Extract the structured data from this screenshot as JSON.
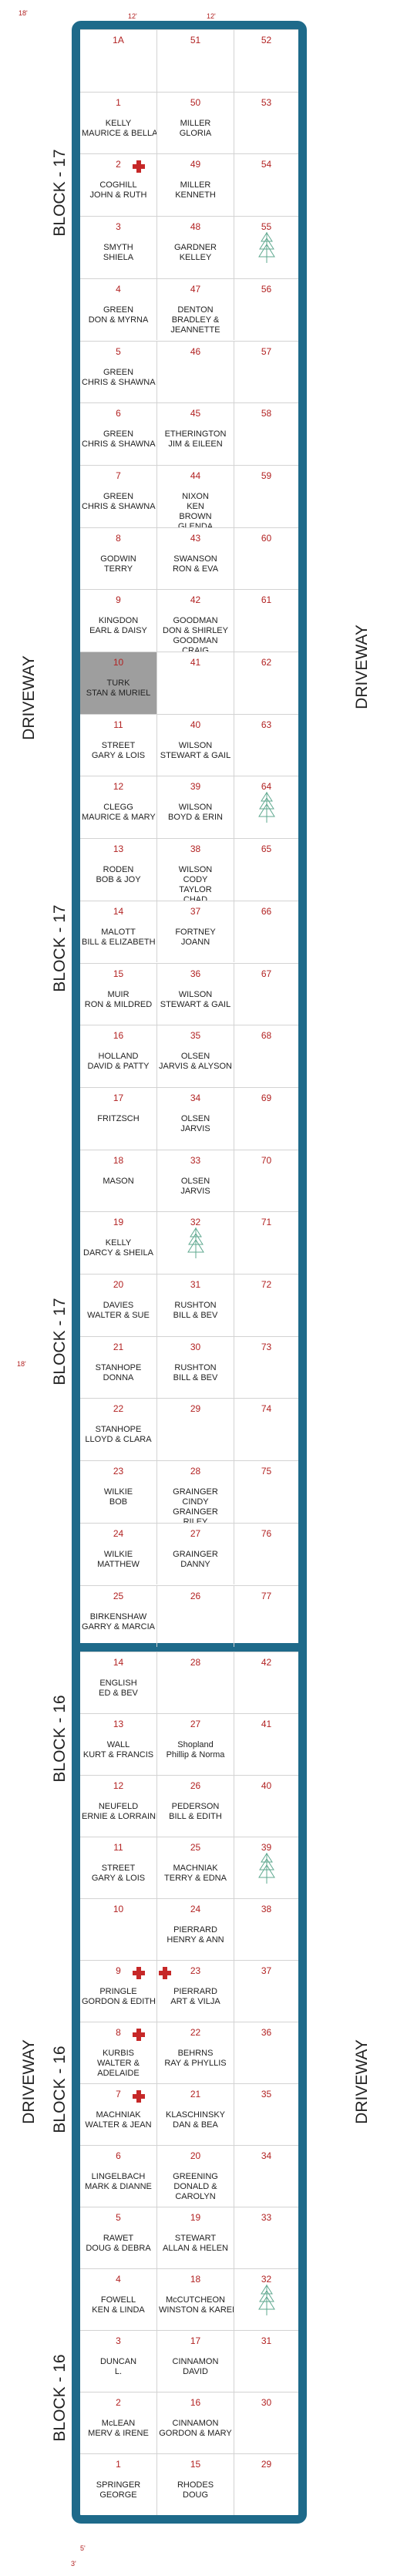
{
  "labels": {
    "block_17": "BLOCK - 17",
    "block_16": "BLOCK - 16",
    "driveway": "DRIVEWAY",
    "dim_18": "18'",
    "dim_15": "15'",
    "dim_12": "12'",
    "dim_3": "3'",
    "dim_5": "5'"
  },
  "block_17": {
    "rows": [
      {
        "plots": [
          {
            "num": "1A",
            "names": []
          },
          {
            "num": "51",
            "names": []
          },
          {
            "num": "52",
            "names": []
          }
        ]
      },
      {
        "plots": [
          {
            "num": "1",
            "names": [
              "KELLY",
              "MAURICE & BELLA"
            ]
          },
          {
            "num": "50",
            "names": [
              "MILLER",
              "GLORIA"
            ]
          },
          {
            "num": "53",
            "names": []
          }
        ]
      },
      {
        "plots": [
          {
            "num": "2",
            "names": [
              "COGHILL",
              "JOHN & RUTH"
            ],
            "cross": true
          },
          {
            "num": "49",
            "names": [
              "MILLER",
              "KENNETH"
            ]
          },
          {
            "num": "54",
            "names": []
          }
        ]
      },
      {
        "plots": [
          {
            "num": "3",
            "names": [
              "SMYTH",
              "SHIELA"
            ]
          },
          {
            "num": "48",
            "names": [
              "GARDNER",
              "KELLEY"
            ]
          },
          {
            "num": "55",
            "names": [],
            "tree": true
          }
        ]
      },
      {
        "plots": [
          {
            "num": "4",
            "names": [
              "GREEN",
              "DON & MYRNA"
            ]
          },
          {
            "num": "47",
            "names": [
              "DENTON",
              "BRADLEY &",
              "JEANNETTE"
            ]
          },
          {
            "num": "56",
            "names": []
          }
        ]
      },
      {
        "plots": [
          {
            "num": "5",
            "names": [
              "GREEN",
              "CHRIS & SHAWNA"
            ]
          },
          {
            "num": "46",
            "names": []
          },
          {
            "num": "57",
            "names": []
          }
        ]
      },
      {
        "plots": [
          {
            "num": "6",
            "names": [
              "GREEN",
              "CHRIS & SHAWNA"
            ]
          },
          {
            "num": "45",
            "names": [
              "ETHERINGTON",
              "JIM & EILEEN"
            ]
          },
          {
            "num": "58",
            "names": []
          }
        ]
      },
      {
        "plots": [
          {
            "num": "7",
            "names": [
              "GREEN",
              "CHRIS & SHAWNA"
            ]
          },
          {
            "num": "44",
            "names": [
              "NIXON",
              "KEN",
              "BROWN",
              "GLENDA"
            ]
          },
          {
            "num": "59",
            "names": []
          }
        ]
      },
      {
        "plots": [
          {
            "num": "8",
            "names": [
              "GODWIN",
              "TERRY"
            ]
          },
          {
            "num": "43",
            "names": [
              "SWANSON",
              "RON & EVA"
            ]
          },
          {
            "num": "60",
            "names": []
          }
        ]
      },
      {
        "plots": [
          {
            "num": "9",
            "names": [
              "KINGDON",
              "EARL & DAISY"
            ]
          },
          {
            "num": "42",
            "names": [
              "GOODMAN",
              "DON & SHIRLEY",
              "GOODMAN",
              "CRAIG"
            ]
          },
          {
            "num": "61",
            "names": []
          }
        ]
      },
      {
        "plots": [
          {
            "num": "10",
            "names": [
              "TURK",
              "STAN & MURIEL"
            ],
            "occupied": true
          },
          {
            "num": "41",
            "names": []
          },
          {
            "num": "62",
            "names": []
          }
        ]
      },
      {
        "plots": [
          {
            "num": "11",
            "names": [
              "STREET",
              "GARY & LOIS"
            ]
          },
          {
            "num": "40",
            "names": [
              "WILSON",
              "STEWART & GAIL"
            ]
          },
          {
            "num": "63",
            "names": []
          }
        ]
      },
      {
        "plots": [
          {
            "num": "12",
            "names": [
              "CLEGG",
              "MAURICE & MARY"
            ]
          },
          {
            "num": "39",
            "names": [
              "WILSON",
              "BOYD & ERIN"
            ]
          },
          {
            "num": "64",
            "names": [],
            "tree": true
          }
        ]
      },
      {
        "plots": [
          {
            "num": "13",
            "names": [
              "RODEN",
              "BOB & JOY"
            ]
          },
          {
            "num": "38",
            "names": [
              "WILSON",
              "CODY",
              "TAYLOR",
              "CHAD"
            ]
          },
          {
            "num": "65",
            "names": []
          }
        ]
      },
      {
        "plots": [
          {
            "num": "14",
            "names": [
              "MALOTT",
              "BILL & ELIZABETH"
            ]
          },
          {
            "num": "37",
            "names": [
              "FORTNEY",
              "JOANN"
            ]
          },
          {
            "num": "66",
            "names": []
          }
        ]
      },
      {
        "plots": [
          {
            "num": "15",
            "names": [
              "MUIR",
              "RON & MILDRED"
            ]
          },
          {
            "num": "36",
            "names": [
              "WILSON",
              "STEWART & GAIL"
            ]
          },
          {
            "num": "67",
            "names": []
          }
        ]
      },
      {
        "plots": [
          {
            "num": "16",
            "names": [
              "HOLLAND",
              "DAVID & PATTY"
            ]
          },
          {
            "num": "35",
            "names": [
              "OLSEN",
              "JARVIS & ALYSON"
            ]
          },
          {
            "num": "68",
            "names": []
          }
        ]
      },
      {
        "plots": [
          {
            "num": "17",
            "names": [
              "FRITZSCH"
            ]
          },
          {
            "num": "34",
            "names": [
              "OLSEN",
              "JARVIS"
            ]
          },
          {
            "num": "69",
            "names": []
          }
        ]
      },
      {
        "plots": [
          {
            "num": "18",
            "names": [
              "MASON"
            ]
          },
          {
            "num": "33",
            "names": [
              "OLSEN",
              "JARVIS"
            ]
          },
          {
            "num": "70",
            "names": []
          }
        ]
      },
      {
        "plots": [
          {
            "num": "19",
            "names": [
              "KELLY",
              "DARCY & SHEILA"
            ]
          },
          {
            "num": "32",
            "names": [],
            "tree": true
          },
          {
            "num": "71",
            "names": []
          }
        ]
      },
      {
        "plots": [
          {
            "num": "20",
            "names": [
              "DAVIES",
              "WALTER & SUE"
            ]
          },
          {
            "num": "31",
            "names": [
              "RUSHTON",
              "BILL & BEV"
            ]
          },
          {
            "num": "72",
            "names": []
          }
        ]
      },
      {
        "plots": [
          {
            "num": "21",
            "names": [
              "STANHOPE",
              "DONNA"
            ]
          },
          {
            "num": "30",
            "names": [
              "RUSHTON",
              "BILL & BEV"
            ]
          },
          {
            "num": "73",
            "names": []
          }
        ]
      },
      {
        "plots": [
          {
            "num": "22",
            "names": [
              "STANHOPE",
              "LLOYD & CLARA"
            ]
          },
          {
            "num": "29",
            "names": []
          },
          {
            "num": "74",
            "names": []
          }
        ]
      },
      {
        "plots": [
          {
            "num": "23",
            "names": [
              "WILKIE",
              "BOB"
            ]
          },
          {
            "num": "28",
            "names": [
              "GRAINGER",
              "CINDY",
              "GRAINGER",
              "RILEY"
            ]
          },
          {
            "num": "75",
            "names": []
          }
        ]
      },
      {
        "plots": [
          {
            "num": "24",
            "names": [
              "WILKIE",
              "MATTHEW"
            ]
          },
          {
            "num": "27",
            "names": [
              "GRAINGER",
              "DANNY"
            ]
          },
          {
            "num": "76",
            "names": []
          }
        ]
      },
      {
        "plots": [
          {
            "num": "25",
            "names": [
              "BIRKENSHAW",
              "GARRY & MARCIA"
            ]
          },
          {
            "num": "26",
            "names": []
          },
          {
            "num": "77",
            "names": []
          }
        ]
      }
    ]
  },
  "block_16": {
    "rows": [
      {
        "plots": [
          {
            "num": "14",
            "names": [
              "ENGLISH",
              "ED & BEV"
            ]
          },
          {
            "num": "28",
            "names": []
          },
          {
            "num": "42",
            "names": []
          }
        ]
      },
      {
        "plots": [
          {
            "num": "13",
            "names": [
              "WALL",
              "KURT & FRANCIS"
            ]
          },
          {
            "num": "27",
            "names": [
              "Shopland",
              "Phillip & Norma"
            ]
          },
          {
            "num": "41",
            "names": []
          }
        ]
      },
      {
        "plots": [
          {
            "num": "12",
            "names": [
              "NEUFELD",
              "ERNIE & LORRAINE"
            ]
          },
          {
            "num": "26",
            "names": [
              "PEDERSON",
              "BILL & EDITH"
            ]
          },
          {
            "num": "40",
            "names": []
          }
        ]
      },
      {
        "plots": [
          {
            "num": "11",
            "names": [
              "STREET",
              "GARY & LOIS"
            ]
          },
          {
            "num": "25",
            "names": [
              "MACHNIAK",
              "TERRY & EDNA"
            ]
          },
          {
            "num": "39",
            "names": [],
            "tree": true
          }
        ]
      },
      {
        "plots": [
          {
            "num": "10",
            "names": []
          },
          {
            "num": "24",
            "names": [
              "PIERRARD",
              "HENRY & ANN"
            ]
          },
          {
            "num": "38",
            "names": []
          }
        ]
      },
      {
        "plots": [
          {
            "num": "9",
            "names": [
              "PRINGLE",
              "GORDON & EDITH"
            ],
            "cross": true
          },
          {
            "num": "23",
            "names": [
              "PIERRARD",
              "ART & VILJA"
            ],
            "cross": true
          },
          {
            "num": "37",
            "names": []
          }
        ]
      },
      {
        "plots": [
          {
            "num": "8",
            "names": [
              "KURBIS",
              "WALTER &",
              "ADELAIDE"
            ],
            "cross": true
          },
          {
            "num": "22",
            "names": [
              "BEHRNS",
              "RAY & PHYLLIS"
            ]
          },
          {
            "num": "36",
            "names": []
          }
        ]
      },
      {
        "plots": [
          {
            "num": "7",
            "names": [
              "MACHNIAK",
              "WALTER & JEAN"
            ],
            "cross": true
          },
          {
            "num": "21",
            "names": [
              "KLASCHINSKY",
              "DAN & BEA"
            ]
          },
          {
            "num": "35",
            "names": []
          }
        ]
      },
      {
        "plots": [
          {
            "num": "6",
            "names": [
              "LINGELBACH",
              "MARK & DIANNE"
            ]
          },
          {
            "num": "20",
            "names": [
              "GREENING",
              "DONALD &",
              "CAROLYN"
            ]
          },
          {
            "num": "34",
            "names": []
          }
        ]
      },
      {
        "plots": [
          {
            "num": "5",
            "names": [
              "RAWET",
              "DOUG & DEBRA"
            ]
          },
          {
            "num": "19",
            "names": [
              "STEWART",
              "ALLAN & HELEN"
            ]
          },
          {
            "num": "33",
            "names": []
          }
        ]
      },
      {
        "plots": [
          {
            "num": "4",
            "names": [
              "FOWELL",
              "KEN & LINDA"
            ]
          },
          {
            "num": "18",
            "names": [
              "McCUTCHEON",
              "WINSTON & KAREN"
            ]
          },
          {
            "num": "32",
            "names": [],
            "tree": true
          }
        ]
      },
      {
        "plots": [
          {
            "num": "3",
            "names": [
              "DUNCAN",
              "L."
            ]
          },
          {
            "num": "17",
            "names": [
              "CINNAMON",
              "DAVID"
            ]
          },
          {
            "num": "31",
            "names": []
          }
        ]
      },
      {
        "plots": [
          {
            "num": "2",
            "names": [
              "McLEAN",
              "MERV & IRENE"
            ]
          },
          {
            "num": "16",
            "names": [
              "CINNAMON",
              "GORDON & MARY"
            ]
          },
          {
            "num": "30",
            "names": []
          }
        ]
      },
      {
        "plots": [
          {
            "num": "1",
            "names": [
              "SPRINGER",
              "GEORGE"
            ]
          },
          {
            "num": "15",
            "names": [
              "RHODES",
              "DOUG"
            ]
          },
          {
            "num": "29",
            "names": []
          }
        ]
      }
    ]
  }
}
